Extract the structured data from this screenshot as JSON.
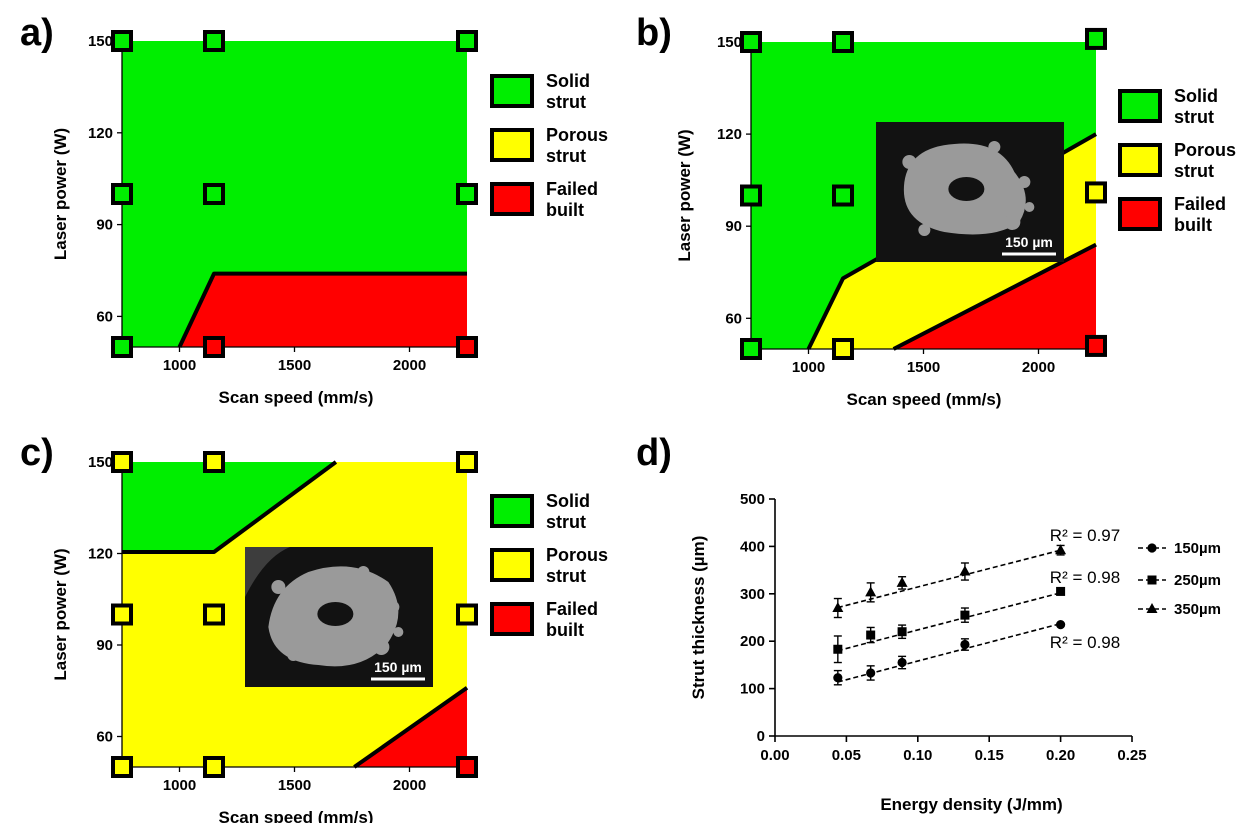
{
  "chart_data": [
    {
      "panel": "a)",
      "type": "area",
      "xlabel": "Scan speed (mm/s)",
      "ylabel": "Laser power (W)",
      "xlim": [
        750,
        2250
      ],
      "ylim": [
        50,
        150
      ],
      "x_ticks": [
        "1000",
        "1500",
        "2000"
      ],
      "y_ticks": [
        "60",
        "90",
        "120",
        "150"
      ],
      "legend": [
        {
          "label": "Solid strut",
          "color": "#00ee00"
        },
        {
          "label": "Porous strut",
          "color": "#ffff00"
        },
        {
          "label": "Failed built",
          "color": "#ff0000"
        }
      ],
      "regions": [
        {
          "class": "Solid strut",
          "polygon": [
            [
              750,
              50
            ],
            [
              1000,
              50
            ],
            [
              1150,
              74
            ],
            [
              2250,
              74
            ],
            [
              2250,
              150
            ],
            [
              750,
              150
            ]
          ]
        },
        {
          "class": "Failed built",
          "polygon": [
            [
              1000,
              50
            ],
            [
              1150,
              74
            ],
            [
              2250,
              74
            ],
            [
              2250,
              50
            ]
          ]
        }
      ],
      "boundaries": [
        [
          [
            1000,
            50
          ],
          [
            1150,
            74
          ],
          [
            2250,
            74
          ]
        ]
      ],
      "markers": [
        {
          "x": 750,
          "y": 150,
          "class": "Solid strut"
        },
        {
          "x": 1150,
          "y": 150,
          "class": "Solid strut"
        },
        {
          "x": 2250,
          "y": 150,
          "class": "Solid strut"
        },
        {
          "x": 750,
          "y": 100,
          "class": "Solid strut"
        },
        {
          "x": 1150,
          "y": 100,
          "class": "Solid strut"
        },
        {
          "x": 2250,
          "y": 100,
          "class": "Solid strut"
        },
        {
          "x": 750,
          "y": 50,
          "class": "Solid strut"
        },
        {
          "x": 1150,
          "y": 50,
          "class": "Failed built"
        },
        {
          "x": 2250,
          "y": 50,
          "class": "Failed built"
        }
      ]
    },
    {
      "panel": "b)",
      "type": "area",
      "xlabel": "Scan speed (mm/s)",
      "ylabel": "Laser power (W)",
      "xlim": [
        750,
        2250
      ],
      "ylim": [
        50,
        150
      ],
      "x_ticks": [
        "1000",
        "1500",
        "2000"
      ],
      "y_ticks": [
        "60",
        "90",
        "120",
        "150"
      ],
      "legend": [
        {
          "label": "Solid strut",
          "color": "#00ee00"
        },
        {
          "label": "Porous strut",
          "color": "#ffff00"
        },
        {
          "label": "Failed built",
          "color": "#ff0000"
        }
      ],
      "regions": [
        {
          "class": "Solid strut",
          "polygon": [
            [
              750,
              50
            ],
            [
              1000,
              50
            ],
            [
              1150,
              73
            ],
            [
              2250,
              120
            ],
            [
              2250,
              150
            ],
            [
              750,
              150
            ]
          ]
        },
        {
          "class": "Porous strut",
          "polygon": [
            [
              1000,
              50
            ],
            [
              1150,
              73
            ],
            [
              2250,
              120
            ],
            [
              2250,
              84
            ],
            [
              1370,
              50
            ]
          ]
        },
        {
          "class": "Failed built",
          "polygon": [
            [
              1370,
              50
            ],
            [
              2250,
              84
            ],
            [
              2250,
              50
            ]
          ]
        }
      ],
      "boundaries": [
        [
          [
            1000,
            50
          ],
          [
            1150,
            73
          ],
          [
            2250,
            120
          ]
        ],
        [
          [
            1370,
            50
          ],
          [
            2250,
            84
          ]
        ]
      ],
      "markers": [
        {
          "x": 750,
          "y": 150,
          "class": "Solid strut"
        },
        {
          "x": 1150,
          "y": 150,
          "class": "Solid strut"
        },
        {
          "x": 2250,
          "y": 151,
          "class": "Solid strut"
        },
        {
          "x": 750,
          "y": 100,
          "class": "Solid strut"
        },
        {
          "x": 1150,
          "y": 100,
          "class": "Solid strut"
        },
        {
          "x": 2250,
          "y": 101,
          "class": "Porous strut"
        },
        {
          "x": 750,
          "y": 50,
          "class": "Solid strut"
        },
        {
          "x": 1150,
          "y": 50,
          "class": "Porous strut"
        },
        {
          "x": 2250,
          "y": 51,
          "class": "Failed built"
        }
      ],
      "inset": {
        "scale_bar": "150 µm"
      }
    },
    {
      "panel": "c)",
      "type": "area",
      "xlabel": "Scan speed (mm/s)",
      "ylabel": "Laser power (W)",
      "xlim": [
        750,
        2250
      ],
      "ylim": [
        50,
        150
      ],
      "x_ticks": [
        "1000",
        "1500",
        "2000"
      ],
      "y_ticks": [
        "60",
        "90",
        "120",
        "150"
      ],
      "legend": [
        {
          "label": "Solid strut",
          "color": "#00ee00"
        },
        {
          "label": "Porous strut",
          "color": "#ffff00"
        },
        {
          "label": "Failed built",
          "color": "#ff0000"
        }
      ],
      "regions": [
        {
          "class": "Solid strut",
          "polygon": [
            [
              750,
              120.5
            ],
            [
              1150,
              120.5
            ],
            [
              1680,
              150
            ],
            [
              750,
              150
            ]
          ]
        },
        {
          "class": "Porous strut",
          "polygon": [
            [
              750,
              50
            ],
            [
              1760,
              50
            ],
            [
              2250,
              76
            ],
            [
              2250,
              150
            ],
            [
              1680,
              150
            ],
            [
              1150,
              120.5
            ],
            [
              750,
              120.5
            ]
          ]
        },
        {
          "class": "Failed built",
          "polygon": [
            [
              1760,
              50
            ],
            [
              2250,
              76
            ],
            [
              2250,
              50
            ]
          ]
        }
      ],
      "boundaries": [
        [
          [
            750,
            120.5
          ],
          [
            1150,
            120.5
          ],
          [
            1680,
            150
          ]
        ],
        [
          [
            1760,
            50
          ],
          [
            2250,
            76
          ]
        ]
      ],
      "markers": [
        {
          "x": 750,
          "y": 150,
          "class": "Porous strut"
        },
        {
          "x": 1150,
          "y": 150,
          "class": "Porous strut"
        },
        {
          "x": 2250,
          "y": 150,
          "class": "Porous strut"
        },
        {
          "x": 750,
          "y": 100,
          "class": "Porous strut"
        },
        {
          "x": 1150,
          "y": 100,
          "class": "Porous strut"
        },
        {
          "x": 2250,
          "y": 100,
          "class": "Porous strut"
        },
        {
          "x": 750,
          "y": 50,
          "class": "Porous strut"
        },
        {
          "x": 1150,
          "y": 50,
          "class": "Porous strut"
        },
        {
          "x": 2250,
          "y": 50,
          "class": "Failed built"
        }
      ],
      "inset": {
        "scale_bar": "150 µm"
      }
    },
    {
      "panel": "d)",
      "type": "scatter",
      "xlabel": "Energy density (J/mm)",
      "ylabel": "Strut thickness (µm)",
      "xlim": [
        0,
        0.25
      ],
      "ylim": [
        0,
        500
      ],
      "x_ticks": [
        "0.00",
        "0.05",
        "0.10",
        "0.15",
        "0.20",
        "0.25"
      ],
      "y_ticks": [
        "0",
        "100",
        "200",
        "300",
        "400",
        "500"
      ],
      "series": [
        {
          "name": "150µm",
          "marker": "circle",
          "x": [
            0.044,
            0.067,
            0.089,
            0.133,
            0.2
          ],
          "y": [
            123,
            133,
            155,
            193,
            235
          ],
          "err": [
            15,
            15,
            13,
            12,
            0
          ],
          "fit": [
            [
              0.044,
              114
            ],
            [
              0.2,
              237
            ]
          ],
          "r2": "R² = 0.98"
        },
        {
          "name": "250µm",
          "marker": "square",
          "x": [
            0.044,
            0.067,
            0.089,
            0.133,
            0.2
          ],
          "y": [
            183,
            213,
            220,
            255,
            305
          ],
          "err": [
            28,
            16,
            14,
            15,
            0
          ],
          "fit": [
            [
              0.044,
              180
            ],
            [
              0.2,
              302
            ]
          ],
          "r2": "R² = 0.98"
        },
        {
          "name": "350µm",
          "marker": "triangle",
          "x": [
            0.044,
            0.067,
            0.089,
            0.133,
            0.2
          ],
          "y": [
            270,
            303,
            323,
            347,
            392
          ],
          "err": [
            20,
            20,
            13,
            18,
            10
          ],
          "fit": [
            [
              0.044,
              271
            ],
            [
              0.2,
              392
            ]
          ],
          "r2": "R² = 0.97"
        }
      ]
    }
  ]
}
